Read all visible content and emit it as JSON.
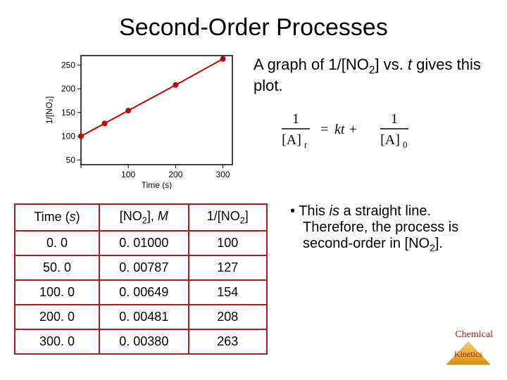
{
  "title": "Second-Order Processes",
  "subtitle_pre": "A graph of 1/[NO",
  "subtitle_sub": "2",
  "subtitle_mid": "] vs. ",
  "subtitle_t": "t",
  "subtitle_post": " gives this plot.",
  "equation": {
    "lhs_num": "1",
    "lhs_den_pre": "[A]",
    "lhs_den_sub": "t",
    "eq": "=",
    "mid": "kt +",
    "rhs_num": "1",
    "rhs_den_pre": "[A]",
    "rhs_den_sub": "0"
  },
  "chart": {
    "type": "scatter-line",
    "xlabel": "Time (s)",
    "ylabel": "1/[NO₂]",
    "xlim": [
      0,
      320
    ],
    "ylim": [
      40,
      270
    ],
    "xticks": [
      0,
      100,
      200,
      300
    ],
    "xtick_labels": [
      "",
      "100",
      "200",
      "300"
    ],
    "yticks": [
      50,
      100,
      150,
      200,
      250
    ],
    "ytick_labels": [
      "50",
      "100",
      "150",
      "200",
      "250"
    ],
    "points": [
      {
        "x": 0,
        "y": 100
      },
      {
        "x": 50,
        "y": 127
      },
      {
        "x": 100,
        "y": 154
      },
      {
        "x": 200,
        "y": 208
      },
      {
        "x": 300,
        "y": 263
      }
    ],
    "line_color": "#c00000",
    "point_color": "#c00000",
    "axis_color": "#000000",
    "tick_color": "#000000",
    "line_width": 2,
    "point_radius": 4,
    "background_color": "#ffffff",
    "label_fontsize": 12
  },
  "table": {
    "border_color": "#a02020",
    "headers": {
      "col1_pre": "Time (",
      "col1_s": "s",
      "col1_post": ")",
      "col2_pre": "[NO",
      "col2_sub": "2",
      "col2_mid": "], ",
      "col2_M": "M",
      "col3_pre": "1/[NO",
      "col3_sub": "2",
      "col3_post": "]"
    },
    "rows": [
      {
        "time": "0. 0",
        "conc": "0. 01000",
        "inv": "100"
      },
      {
        "time": "50. 0",
        "conc": "0. 00787",
        "inv": "127"
      },
      {
        "time": "100. 0",
        "conc": "0. 00649",
        "inv": "154"
      },
      {
        "time": "200. 0",
        "conc": "0. 00481",
        "inv": "208"
      },
      {
        "time": "300. 0",
        "conc": "0. 00380",
        "inv": "263"
      }
    ]
  },
  "bullet_pre": "This ",
  "bullet_is": "is",
  "bullet_mid": " a straight line. Therefore, the process is second-order in [NO",
  "bullet_sub": "2",
  "bullet_post": "].",
  "footer_top": "Chemical",
  "footer_bottom": "Kinetics"
}
